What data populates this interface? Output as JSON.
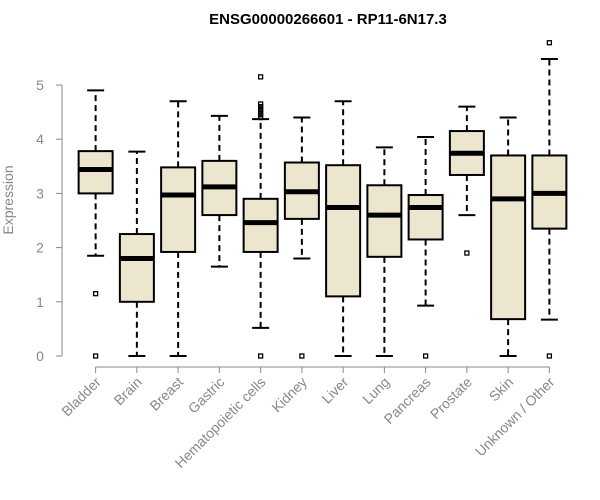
{
  "chart_data": {
    "type": "boxplot",
    "title": "ENSG00000266601 - RP11-6N17.3",
    "ylabel": "Expression",
    "xlabel": "",
    "ylim": [
      0,
      5.85
    ],
    "yticks": [
      0,
      1,
      2,
      3,
      4,
      5
    ],
    "box_fill": "#ede6cf",
    "categories": [
      "Bladder",
      "Brain",
      "Breast",
      "Gastric",
      "Hematopoietic cells",
      "Kidney",
      "Liver",
      "Lung",
      "Pancreas",
      "Prostate",
      "Skin",
      "Unknown / Other"
    ],
    "boxes": [
      {
        "q1": 3.0,
        "median": 3.44,
        "q3": 3.78,
        "whisker_low": 1.85,
        "whisker_high": 4.9,
        "outliers": [
          1.15,
          0.0
        ]
      },
      {
        "q1": 1.0,
        "median": 1.8,
        "q3": 2.25,
        "whisker_low": 0.0,
        "whisker_high": 3.77,
        "outliers": []
      },
      {
        "q1": 1.92,
        "median": 2.97,
        "q3": 3.48,
        "whisker_low": 0.0,
        "whisker_high": 4.7,
        "outliers": []
      },
      {
        "q1": 2.6,
        "median": 3.12,
        "q3": 3.6,
        "whisker_low": 1.65,
        "whisker_high": 4.43,
        "outliers": []
      },
      {
        "q1": 1.92,
        "median": 2.46,
        "q3": 2.9,
        "whisker_low": 0.52,
        "whisker_high": 4.37,
        "outliers": [
          5.15,
          4.65,
          4.6,
          4.55,
          4.5,
          4.45,
          4.4,
          0.0
        ]
      },
      {
        "q1": 2.53,
        "median": 3.03,
        "q3": 3.57,
        "whisker_low": 1.8,
        "whisker_high": 4.4,
        "outliers": [
          0.0
        ]
      },
      {
        "q1": 1.1,
        "median": 2.74,
        "q3": 3.52,
        "whisker_low": 0.0,
        "whisker_high": 4.7,
        "outliers": []
      },
      {
        "q1": 1.83,
        "median": 2.6,
        "q3": 3.15,
        "whisker_low": 0.0,
        "whisker_high": 3.85,
        "outliers": []
      },
      {
        "q1": 2.15,
        "median": 2.74,
        "q3": 2.97,
        "whisker_low": 0.93,
        "whisker_high": 4.04,
        "outliers": [
          0.0
        ]
      },
      {
        "q1": 3.34,
        "median": 3.74,
        "q3": 4.15,
        "whisker_low": 2.6,
        "whisker_high": 4.6,
        "outliers": [
          1.9
        ]
      },
      {
        "q1": 0.68,
        "median": 2.9,
        "q3": 3.7,
        "whisker_low": 0.0,
        "whisker_high": 4.4,
        "outliers": []
      },
      {
        "q1": 2.35,
        "median": 3.0,
        "q3": 3.7,
        "whisker_low": 0.67,
        "whisker_high": 5.48,
        "outliers": [
          5.78,
          0.0
        ]
      }
    ]
  }
}
